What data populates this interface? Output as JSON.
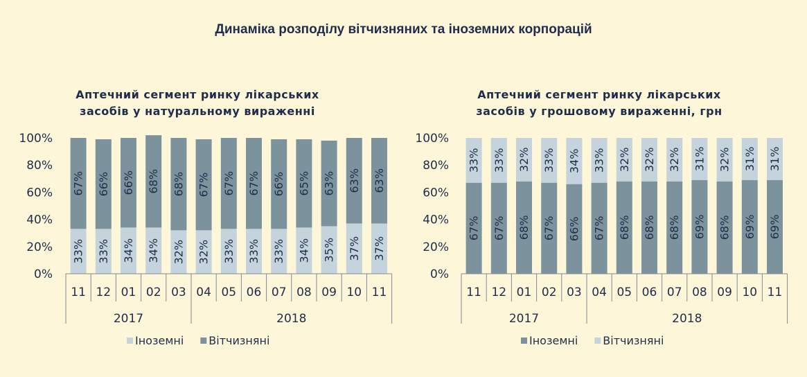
{
  "title": "Динаміка розподілу вітчизняних та іноземних корпорацій",
  "colors": {
    "light": "#c4d3dc",
    "dark": "#7c939e",
    "text": "#1f2d4a",
    "axis": "#7f8a99"
  },
  "chart_data": [
    {
      "type": "bar",
      "stacked": true,
      "title": "Аптечний  сегмент ринку  лікарських засобів у натуральному  вираженні",
      "title_lines": [
        "Аптечний  сегмент ринку  лікарських",
        "засобів у натуральному  вираженні"
      ],
      "categories": [
        "11",
        "12",
        "01",
        "02",
        "03",
        "04",
        "05",
        "06",
        "07",
        "08",
        "09",
        "10",
        "11"
      ],
      "year_groups": [
        {
          "label": "2017",
          "count": 5
        },
        {
          "label": "2018",
          "count": 8
        }
      ],
      "ylim": [
        0,
        100
      ],
      "yticks": [
        "0%",
        "20%",
        "40%",
        "60%",
        "80%",
        "100%"
      ],
      "series": [
        {
          "name": "Іноземні",
          "color": "#c4d3dc",
          "values": [
            33,
            33,
            34,
            34,
            32,
            32,
            33,
            33,
            33,
            34,
            35,
            37,
            37
          ]
        },
        {
          "name": "Вітчизняні",
          "color": "#7c939e",
          "values": [
            67,
            66,
            66,
            68,
            68,
            67,
            67,
            67,
            66,
            65,
            63,
            63,
            63
          ]
        }
      ],
      "legend_position": "bottom"
    },
    {
      "type": "bar",
      "stacked": true,
      "title": "Аптечний  сегмент ринку  лікарських засобів у грошовому  вираженні,  грн",
      "title_lines": [
        "Аптечний  сегмент ринку  лікарських",
        "засобів у грошовому  вираженні,  грн"
      ],
      "categories": [
        "11",
        "12",
        "01",
        "02",
        "03",
        "04",
        "05",
        "06",
        "07",
        "08",
        "09",
        "10",
        "11"
      ],
      "year_groups": [
        {
          "label": "2017",
          "count": 5
        },
        {
          "label": "2018",
          "count": 8
        }
      ],
      "ylim": [
        0,
        100
      ],
      "yticks": [
        "0%",
        "20%",
        "40%",
        "60%",
        "80%",
        "100%"
      ],
      "series": [
        {
          "name": "Іноземні",
          "color": "#7c939e",
          "values": [
            67,
            67,
            68,
            67,
            66,
            67,
            68,
            68,
            68,
            69,
            68,
            69,
            69
          ]
        },
        {
          "name": "Вітчизняні",
          "color": "#c4d3dc",
          "values": [
            33,
            33,
            32,
            33,
            34,
            33,
            32,
            32,
            32,
            31,
            32,
            31,
            31
          ]
        }
      ],
      "legend_position": "bottom"
    }
  ]
}
